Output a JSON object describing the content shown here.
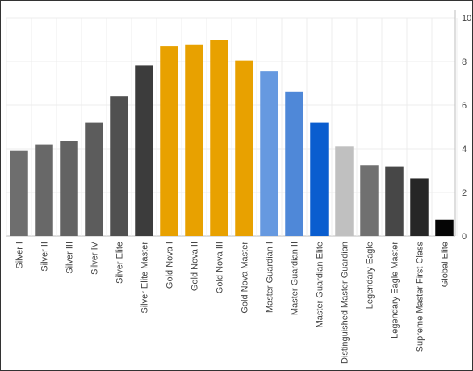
{
  "chart_data": {
    "type": "bar",
    "categories": [
      "Silver I",
      "Silver II",
      "Silver III",
      "Silver IV",
      "Silver Elite",
      "Silver Elite Master",
      "Gold Nova I",
      "Gold Nova II",
      "Gold Nova III",
      "Gold Nova Master",
      "Master Guardian I",
      "Master Guardian II",
      "Master Guardian Elite",
      "Distinguished Master Guardian",
      "Legendary Eagle",
      "Legendary Eagle Master",
      "Supreme Master First Class",
      "Global Elite"
    ],
    "values": [
      3.9,
      4.2,
      4.35,
      5.2,
      6.4,
      7.8,
      8.7,
      8.75,
      9.0,
      8.05,
      7.55,
      6.6,
      5.2,
      4.1,
      3.25,
      3.2,
      2.65,
      0.75
    ],
    "colors": [
      "#6e6e6e",
      "#686868",
      "#636363",
      "#5c5c5c",
      "#505050",
      "#3c3c3c",
      "#e8a100",
      "#e8a100",
      "#e8a100",
      "#e8a100",
      "#6699e0",
      "#4f88d8",
      "#0a5dcf",
      "#c0c0c0",
      "#707070",
      "#474747",
      "#262626",
      "#050505"
    ],
    "yticks": [
      "0",
      "2",
      "4",
      "6",
      "8",
      "10"
    ],
    "ylim": [
      0,
      10
    ],
    "title": "",
    "xlabel": "",
    "ylabel": "",
    "grid": true,
    "y_axis_side": "right"
  }
}
